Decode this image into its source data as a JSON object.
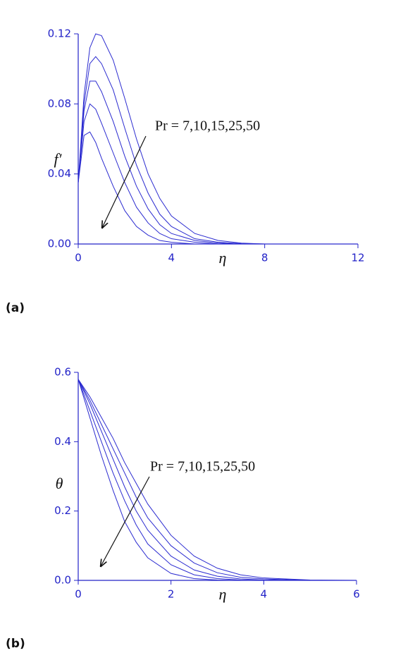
{
  "chart_data": [
    {
      "type": "line",
      "panel_label": "(a)",
      "y_label": "f′",
      "x_label": "η",
      "annotation": "Pr = 7,10,15,25,50",
      "x": [
        0,
        0.25,
        0.5,
        0.75,
        1,
        1.5,
        2,
        2.5,
        3,
        3.5,
        4,
        5,
        6,
        7,
        8,
        10,
        12
      ],
      "series": [
        {
          "color": "#2b2bd0",
          "values": [
            0.035,
            0.085,
            0.112,
            0.12,
            0.119,
            0.105,
            0.083,
            0.06,
            0.04,
            0.026,
            0.016,
            0.006,
            0.002,
            0.0005,
            0,
            0,
            0
          ]
        },
        {
          "color": "#2b2bd0",
          "values": [
            0.035,
            0.08,
            0.103,
            0.107,
            0.103,
            0.088,
            0.066,
            0.045,
            0.029,
            0.017,
            0.01,
            0.003,
            0.001,
            0.0002,
            0,
            0,
            0
          ]
        },
        {
          "color": "#2b2bd0",
          "values": [
            0.035,
            0.076,
            0.093,
            0.093,
            0.087,
            0.07,
            0.05,
            0.033,
            0.02,
            0.011,
            0.006,
            0.002,
            0.0005,
            0,
            0,
            0,
            0
          ]
        },
        {
          "color": "#2b2bd0",
          "values": [
            0.035,
            0.07,
            0.08,
            0.077,
            0.069,
            0.052,
            0.035,
            0.021,
            0.012,
            0.006,
            0.003,
            0.001,
            0,
            0,
            0,
            0,
            0
          ]
        },
        {
          "color": "#2b2bd0",
          "values": [
            0.035,
            0.062,
            0.064,
            0.058,
            0.049,
            0.033,
            0.019,
            0.01,
            0.005,
            0.002,
            0.001,
            0,
            0,
            0,
            0,
            0,
            0
          ]
        }
      ],
      "xlim": [
        0,
        12
      ],
      "xticks": [
        0,
        4,
        8,
        12
      ],
      "ylim": [
        0,
        0.12
      ],
      "yticks": [
        {
          "value": 0,
          "label": "0.00"
        },
        0.04,
        0.08,
        0.12
      ]
    },
    {
      "type": "line",
      "panel_label": "(b)",
      "y_label": "θ",
      "x_label": "η",
      "annotation": "Pr = 7,10,15,25,50",
      "x": [
        0,
        0.25,
        0.5,
        0.75,
        1,
        1.25,
        1.5,
        2,
        2.5,
        3,
        3.5,
        4,
        5,
        6
      ],
      "series": [
        {
          "color": "#2b2bd0",
          "values": [
            0.58,
            0.53,
            0.47,
            0.41,
            0.34,
            0.28,
            0.22,
            0.13,
            0.07,
            0.035,
            0.016,
            0.007,
            0.001,
            0
          ]
        },
        {
          "color": "#2b2bd0",
          "values": [
            0.58,
            0.52,
            0.45,
            0.38,
            0.31,
            0.24,
            0.18,
            0.1,
            0.05,
            0.022,
            0.009,
            0.004,
            0,
            0
          ]
        },
        {
          "color": "#2b2bd0",
          "values": [
            0.58,
            0.51,
            0.43,
            0.35,
            0.27,
            0.2,
            0.145,
            0.07,
            0.03,
            0.012,
            0.004,
            0.001,
            0,
            0
          ]
        },
        {
          "color": "#2b2bd0",
          "values": [
            0.58,
            0.49,
            0.4,
            0.31,
            0.23,
            0.16,
            0.105,
            0.045,
            0.016,
            0.005,
            0.001,
            0,
            0,
            0
          ]
        },
        {
          "color": "#2b2bd0",
          "values": [
            0.58,
            0.47,
            0.36,
            0.26,
            0.17,
            0.11,
            0.065,
            0.02,
            0.005,
            0.001,
            0,
            0,
            0,
            0
          ]
        }
      ],
      "xlim": [
        0,
        6
      ],
      "xticks": [
        0,
        2,
        4,
        6
      ],
      "ylim": [
        0,
        0.6
      ],
      "yticks": [
        {
          "value": 0,
          "label": "0.0"
        },
        0.2,
        0.4,
        0.6
      ]
    }
  ]
}
